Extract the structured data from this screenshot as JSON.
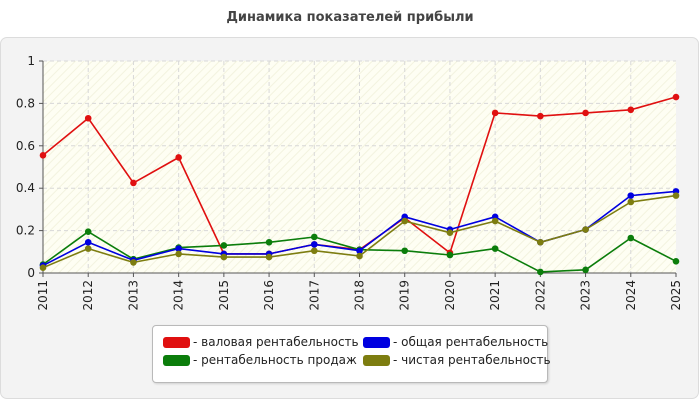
{
  "chart_data": {
    "type": "line",
    "title": "Динамика показателей прибыли",
    "categories": [
      "2011",
      "2012",
      "2013",
      "2014",
      "2015",
      "2016",
      "2017",
      "2018",
      "2019",
      "2020",
      "2021",
      "2022",
      "2023",
      "2024",
      "2025"
    ],
    "ylim": [
      0,
      1
    ],
    "yticks": [
      "0",
      "0.2",
      "0.4",
      "0.6",
      "0.8",
      "1"
    ],
    "grid": true,
    "legend_position": "bottom",
    "series": [
      {
        "name": "- валовая рентабельность",
        "color": "#e01010",
        "values": [
          0.555,
          0.73,
          0.425,
          0.545,
          0.09,
          0.09,
          0.135,
          0.11,
          0.26,
          0.095,
          0.755,
          0.74,
          0.755,
          0.77,
          0.83
        ]
      },
      {
        "name": "- рентабельность продаж",
        "color": "#0b7d0b",
        "values": [
          0.04,
          0.195,
          0.065,
          0.12,
          0.13,
          0.145,
          0.17,
          0.11,
          0.105,
          0.085,
          0.115,
          0.005,
          0.015,
          0.165,
          0.055
        ]
      },
      {
        "name": "- общая рентабельность",
        "color": "#0000e0",
        "values": [
          0.035,
          0.145,
          0.06,
          0.115,
          0.09,
          0.09,
          0.135,
          0.105,
          0.265,
          0.205,
          0.265,
          0.145,
          0.205,
          0.365,
          0.385
        ]
      },
      {
        "name": "- чистая рентабельность",
        "color": "#7d7d10",
        "values": [
          0.025,
          0.115,
          0.05,
          0.09,
          0.075,
          0.075,
          0.105,
          0.08,
          0.245,
          0.19,
          0.245,
          0.145,
          0.205,
          0.335,
          0.365
        ]
      }
    ]
  },
  "legend": {
    "items": [
      "- валовая рентабельность",
      "- общая рентабельность",
      "- рентабельность продаж",
      "- чистая рентабельность"
    ],
    "colors": [
      "#e01010",
      "#0000e0",
      "#0b7d0b",
      "#7d7d10"
    ]
  }
}
